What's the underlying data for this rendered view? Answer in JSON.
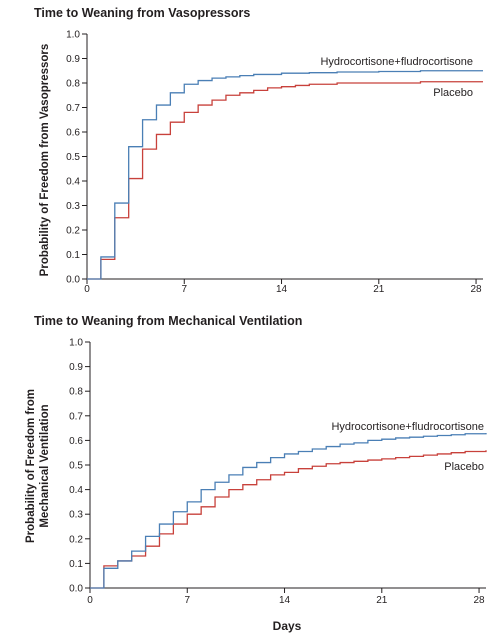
{
  "colors": {
    "series_a": "#4a7fb5",
    "series_b": "#c8413b",
    "axis": "#231f20"
  },
  "chart_data": [
    {
      "type": "line",
      "step": true,
      "title": "Time to Weaning from Vasopressors",
      "ylabel": "Probability of Freedom from Vasopressors",
      "xlabel": "",
      "xlim": [
        0,
        28.5
      ],
      "ylim": [
        0,
        1.0
      ],
      "xticks": [
        0,
        7,
        14,
        21,
        28
      ],
      "yticks": [
        0.0,
        0.1,
        0.2,
        0.3,
        0.4,
        0.5,
        0.6,
        0.7,
        0.8,
        0.9,
        1.0
      ],
      "ytick_labels": [
        "0.0",
        "0.1",
        "0.2",
        "0.3",
        "0.4",
        "0.5",
        "0.6",
        "0.7",
        "0.8",
        "0.9",
        "1.0"
      ],
      "xtick_labels": [
        "0",
        "7",
        "14",
        "21",
        "28"
      ],
      "series": [
        {
          "name": "Hydrocortisone+fludrocortisone",
          "x": [
            0,
            1,
            2,
            3,
            4,
            5,
            6,
            7,
            8,
            9,
            10,
            11,
            12,
            14,
            16,
            18,
            21,
            24,
            28.5
          ],
          "y": [
            0,
            0.09,
            0.31,
            0.54,
            0.65,
            0.71,
            0.76,
            0.795,
            0.81,
            0.82,
            0.825,
            0.83,
            0.835,
            0.84,
            0.842,
            0.845,
            0.847,
            0.85,
            0.85
          ]
        },
        {
          "name": "Placebo",
          "x": [
            0,
            1,
            2,
            3,
            4,
            5,
            6,
            7,
            8,
            9,
            10,
            11,
            12,
            13,
            14,
            15,
            16,
            18,
            21,
            24,
            28.5
          ],
          "y": [
            0,
            0.08,
            0.25,
            0.41,
            0.53,
            0.59,
            0.64,
            0.68,
            0.71,
            0.73,
            0.75,
            0.76,
            0.77,
            0.78,
            0.785,
            0.79,
            0.795,
            0.8,
            0.8,
            0.805,
            0.805
          ]
        }
      ]
    },
    {
      "type": "line",
      "step": true,
      "title": "Time to Weaning from Mechanical Ventilation",
      "ylabel": "Probability of Freedom from Mechanical Ventilation",
      "xlabel": "Days",
      "xlim": [
        0,
        28.5
      ],
      "ylim": [
        0,
        1.0
      ],
      "xticks": [
        0,
        7,
        14,
        21,
        28
      ],
      "yticks": [
        0.0,
        0.1,
        0.2,
        0.3,
        0.4,
        0.5,
        0.6,
        0.7,
        0.8,
        0.9,
        1.0
      ],
      "ytick_labels": [
        "0.0",
        "0.1",
        "0.2",
        "0.3",
        "0.4",
        "0.5",
        "0.6",
        "0.7",
        "0.8",
        "0.9",
        "1.0"
      ],
      "xtick_labels": [
        "0",
        "7",
        "14",
        "21",
        "28"
      ],
      "series": [
        {
          "name": "Hydrocortisone+fludrocortisone",
          "x": [
            0,
            1,
            2,
            3,
            4,
            5,
            6,
            7,
            8,
            9,
            10,
            11,
            12,
            13,
            14,
            15,
            16,
            17,
            18,
            19,
            20,
            21,
            22,
            23,
            24,
            25,
            26,
            27,
            28.5
          ],
          "y": [
            0,
            0.08,
            0.11,
            0.15,
            0.21,
            0.26,
            0.31,
            0.35,
            0.4,
            0.43,
            0.46,
            0.49,
            0.51,
            0.53,
            0.545,
            0.555,
            0.565,
            0.575,
            0.585,
            0.59,
            0.6,
            0.605,
            0.61,
            0.613,
            0.617,
            0.62,
            0.623,
            0.627,
            0.63
          ]
        },
        {
          "name": "Placebo",
          "x": [
            0,
            1,
            2,
            3,
            4,
            5,
            6,
            7,
            8,
            9,
            10,
            11,
            12,
            13,
            14,
            15,
            16,
            17,
            18,
            19,
            20,
            21,
            22,
            23,
            24,
            25,
            26,
            27,
            28.5
          ],
          "y": [
            0,
            0.09,
            0.11,
            0.13,
            0.17,
            0.22,
            0.26,
            0.3,
            0.33,
            0.37,
            0.4,
            0.42,
            0.44,
            0.46,
            0.47,
            0.485,
            0.495,
            0.505,
            0.51,
            0.515,
            0.52,
            0.525,
            0.53,
            0.535,
            0.54,
            0.545,
            0.55,
            0.555,
            0.56
          ]
        }
      ]
    }
  ]
}
